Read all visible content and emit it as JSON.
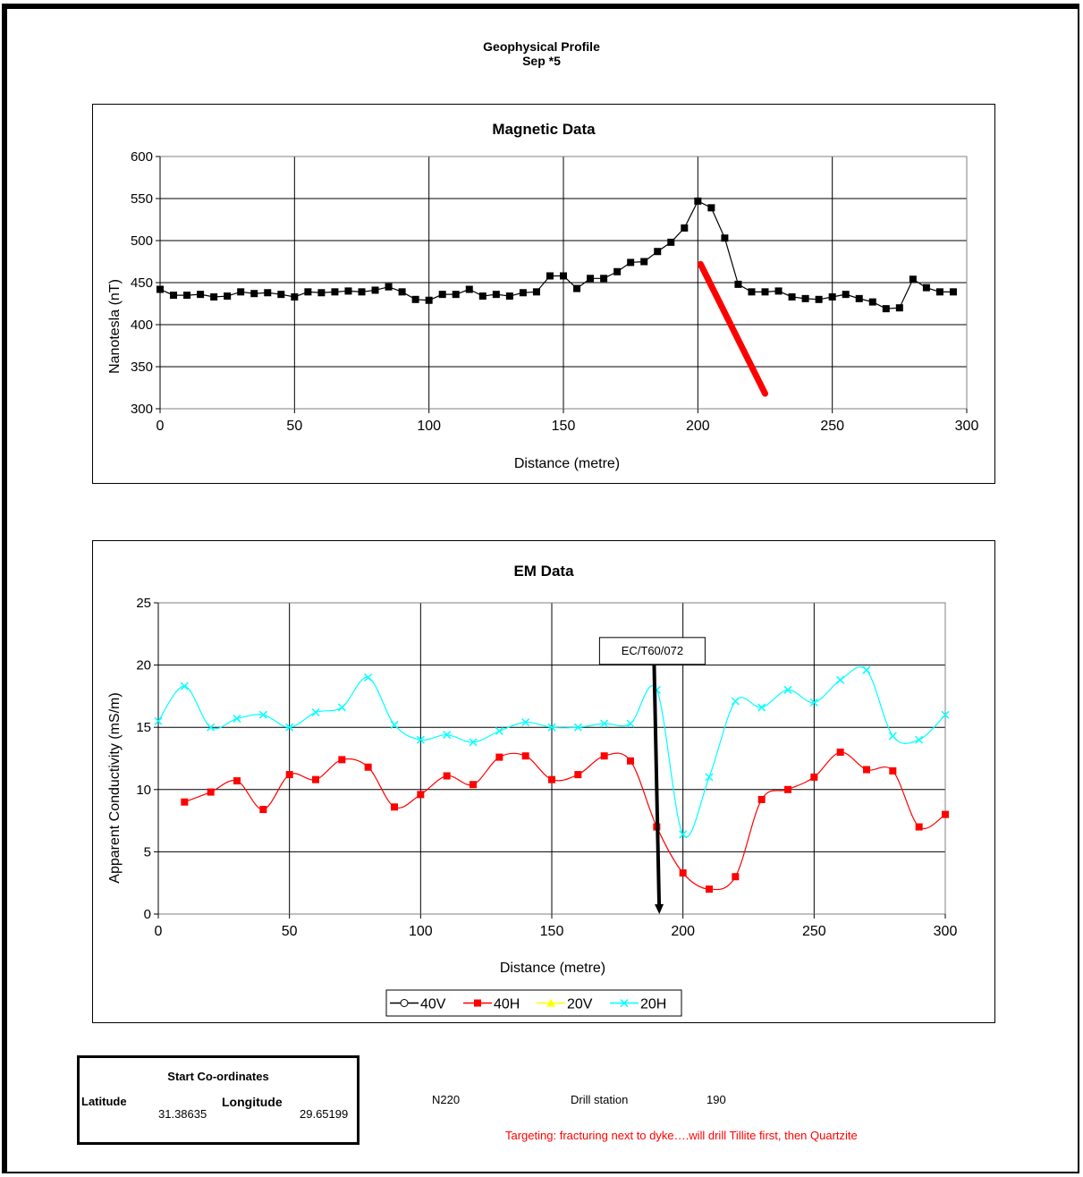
{
  "page": {
    "title": "Geophysical Profile",
    "subtitle": "Sep *5"
  },
  "chart_data": [
    {
      "type": "line",
      "title": "Magnetic Data",
      "xlabel": "Distance (metre)",
      "ylabel": "Nanotesla (nT)",
      "xlim": [
        0,
        300
      ],
      "ylim": [
        300,
        600
      ],
      "xticks": [
        0,
        50,
        100,
        150,
        200,
        250,
        300
      ],
      "yticks": [
        300,
        350,
        400,
        450,
        500,
        550,
        600
      ],
      "grid": true,
      "series": [
        {
          "color": "#000000",
          "marker": "square",
          "x": [
            0,
            5,
            10,
            15,
            20,
            25,
            30,
            35,
            40,
            45,
            50,
            55,
            60,
            65,
            70,
            75,
            80,
            85,
            90,
            95,
            100,
            105,
            110,
            115,
            120,
            125,
            130,
            135,
            140,
            145,
            150,
            155,
            160,
            165,
            170,
            175,
            180,
            185,
            190,
            195,
            200,
            205,
            210,
            215,
            220,
            225,
            230,
            235,
            240,
            245,
            250,
            255,
            260,
            265,
            270,
            275,
            280,
            285,
            290,
            295
          ],
          "y": [
            442,
            435,
            435,
            436,
            433,
            434,
            439,
            437,
            438,
            436,
            433,
            439,
            438,
            439,
            440,
            439,
            441,
            445,
            439,
            430,
            429,
            436,
            436,
            442,
            434,
            436,
            434,
            438,
            439,
            458,
            458,
            443,
            455,
            455,
            463,
            474,
            475,
            487,
            498,
            515,
            547,
            539,
            503,
            448,
            439,
            439,
            440,
            433,
            431,
            430,
            433,
            436,
            431,
            427,
            419,
            420,
            454,
            444,
            439,
            439
          ]
        }
      ],
      "annotations": [
        {
          "type": "line",
          "color": "#ff0000",
          "from": [
            201,
            472
          ],
          "to": [
            225,
            318
          ]
        }
      ]
    },
    {
      "type": "line",
      "title": "EM Data",
      "xlabel": "Distance (metre)",
      "ylabel": "Apparent Conductivity (mS/m)",
      "xlim": [
        0,
        300
      ],
      "ylim": [
        0,
        25
      ],
      "xticks": [
        0,
        50,
        100,
        150,
        200,
        250,
        300
      ],
      "yticks": [
        0,
        5,
        10,
        15,
        20,
        25
      ],
      "grid": true,
      "legend_position": "bottom",
      "series": [
        {
          "name": "40V",
          "color": "#000000",
          "marker": "circle",
          "x": [],
          "y": []
        },
        {
          "name": "40H",
          "color": "#ff0000",
          "marker": "square",
          "x": [
            10,
            20,
            30,
            40,
            50,
            60,
            70,
            80,
            90,
            100,
            110,
            120,
            130,
            140,
            150,
            160,
            170,
            180,
            190,
            200,
            210,
            220,
            230,
            240,
            250,
            260,
            270,
            280,
            290,
            300
          ],
          "y": [
            9,
            9.8,
            10.7,
            8.4,
            11.2,
            10.8,
            12.4,
            11.8,
            8.6,
            9.6,
            11.1,
            10.4,
            12.6,
            12.7,
            10.8,
            11.2,
            12.7,
            12.3,
            7,
            3.3,
            2,
            3,
            9.2,
            10,
            11,
            13,
            11.6,
            11.5,
            7,
            8
          ]
        },
        {
          "name": "20V",
          "color": "#ffff00",
          "marker": "triangle",
          "x": [],
          "y": []
        },
        {
          "name": "20H",
          "color": "#00ffff",
          "marker": "x",
          "x": [
            0,
            10,
            20,
            30,
            40,
            50,
            60,
            70,
            80,
            90,
            100,
            110,
            120,
            130,
            140,
            150,
            160,
            170,
            180,
            190,
            200,
            210,
            220,
            230,
            240,
            250,
            260,
            270,
            280,
            290,
            300
          ],
          "y": [
            15.5,
            18.3,
            15,
            15.7,
            16,
            15,
            16.2,
            16.6,
            19,
            15.2,
            14,
            14.4,
            13.8,
            14.7,
            15.4,
            15,
            15,
            15.3,
            15.3,
            18,
            6.4,
            11,
            17.1,
            16.6,
            18,
            17,
            18.8,
            19.6,
            14.3,
            14,
            16
          ]
        }
      ],
      "annotations": [
        {
          "type": "arrow",
          "label": "EC/T60/072",
          "color": "#000000",
          "from": [
            189,
            20.2
          ],
          "to": [
            191,
            0
          ]
        }
      ]
    }
  ],
  "coords": {
    "header": "Start Co-ordinates",
    "lat_label": "Latitude",
    "lon_label": "Longitude",
    "lat_value": "31.38635",
    "lon_value": "29.65199"
  },
  "info": {
    "line": "N220",
    "drill_label": "Drill station",
    "drill_value": "190",
    "target": "Targeting: fracturing next to dyke….will drill Tillite first, then Quartzite",
    "target_color": "#ff0000"
  }
}
